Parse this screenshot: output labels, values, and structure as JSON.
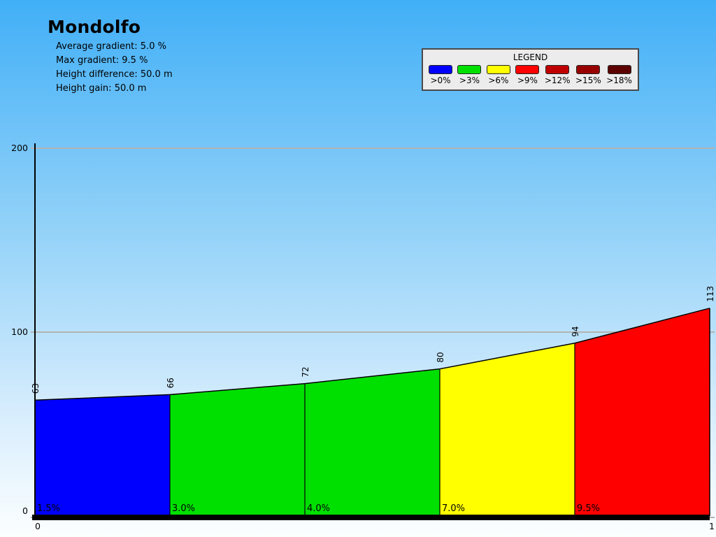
{
  "header": {
    "title": "Mondolfo",
    "stats": [
      "Average gradient: 5.0 %",
      "Max gradient: 9.5 %",
      "Height difference: 50.0 m",
      "Height gain: 50.0 m"
    ]
  },
  "legend": {
    "title": "LEGEND",
    "items": [
      {
        "label": ">0%",
        "color": "#0000ff"
      },
      {
        "label": ">3%",
        "color": "#00e000"
      },
      {
        "label": ">6%",
        "color": "#ffff00"
      },
      {
        "label": ">9%",
        "color": "#ff0000"
      },
      {
        "label": ">12%",
        "color": "#c00000"
      },
      {
        "label": ">15%",
        "color": "#980000"
      },
      {
        "label": ">18%",
        "color": "#5c0000"
      }
    ]
  },
  "chart_data": {
    "type": "area",
    "title": "Mondolfo",
    "xlabel": "",
    "ylabel": "",
    "x_km": [
      0,
      0.2,
      0.4,
      0.6,
      0.8,
      1.0
    ],
    "elevations_m": [
      63,
      66,
      72,
      80,
      94,
      113
    ],
    "segments": [
      {
        "from_km": 0.0,
        "to_km": 0.2,
        "gradient_pct": 1.5,
        "gradient_label": "1.5%",
        "color": "#0000ff"
      },
      {
        "from_km": 0.2,
        "to_km": 0.4,
        "gradient_pct": 3.0,
        "gradient_label": "3.0%",
        "color": "#00e000"
      },
      {
        "from_km": 0.4,
        "to_km": 0.6,
        "gradient_pct": 4.0,
        "gradient_label": "4.0%",
        "color": "#00e000"
      },
      {
        "from_km": 0.6,
        "to_km": 0.8,
        "gradient_pct": 7.0,
        "gradient_label": "7.0%",
        "color": "#ffff00"
      },
      {
        "from_km": 0.8,
        "to_km": 1.0,
        "gradient_pct": 9.5,
        "gradient_label": "9.5%",
        "color": "#ff0000"
      }
    ],
    "y_ticks": [
      0,
      100,
      200
    ],
    "x_ticks": [
      0,
      1
    ],
    "xlim_km": [
      0,
      1
    ],
    "ylim_m": [
      0,
      203
    ],
    "grid": true,
    "legend_position": "top-right"
  },
  "colors": {
    "background_top": "#41aff7",
    "background_bottom": "#fcfeff",
    "gridline": "#b3b3b3",
    "axis": "#000000",
    "baseline_bar": "#000000",
    "legend_bg": "#ececec",
    "legend_border": "#4a4a4a"
  }
}
